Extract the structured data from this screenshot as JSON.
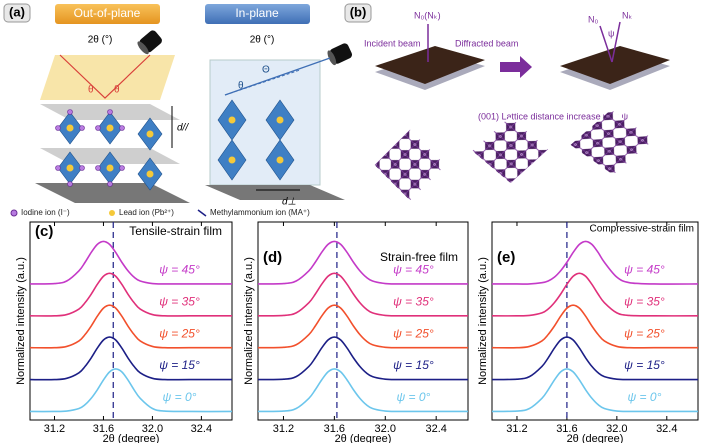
{
  "panel_a": {
    "label": "(a)",
    "out_of_plane": "Out-of-plane",
    "in_plane": "In-plane",
    "angle_left": "2θ (°)",
    "angle_right": "2θ (°)",
    "theta_left": [
      "θ",
      "θ"
    ],
    "theta_right": [
      "Θ",
      "θ"
    ],
    "d_parallel": "d//",
    "d_perp": "d⊥",
    "legend": [
      "Iodine ion (I⁻)",
      "Lead ion (Pb²⁺)",
      "Methylammonium ion (MA⁺)"
    ]
  },
  "panel_b": {
    "label": "(b)",
    "normal_left": "N₀(Nₖ)",
    "incident": "Incident beam",
    "diffracted": "Diffracted beam",
    "normal_0": "N₀",
    "psi": "ψ",
    "normal_k": "Nₖ",
    "caption": "(001) Lattice distance increase with ψ"
  },
  "chart_data": [
    {
      "type": "line",
      "panel": "(c)",
      "title": "Tensile-strain film",
      "xlabel": "2θ (degree)",
      "ylabel": "Normalized intensity (a.u.)",
      "xlim": [
        31.0,
        32.65
      ],
      "ylim": [
        -0.2,
        4.45
      ],
      "xticks": [
        31.2,
        31.6,
        {
          "value": 32,
          "label": "32.0"
        },
        32.4
      ],
      "reference_x": 31.68,
      "x": [
        31.0,
        31.2,
        31.3,
        31.4,
        31.45,
        31.5,
        31.55,
        31.6,
        31.65,
        31.7,
        31.75,
        31.8,
        31.85,
        31.9,
        32.0,
        32.1,
        32.3,
        32.65
      ],
      "series": [
        {
          "name": "ψ = 45°",
          "color": "#c43ac8",
          "values": [
            0,
            0.01,
            0.07,
            0.31,
            0.51,
            0.74,
            0.93,
            1,
            0.93,
            0.74,
            0.51,
            0.31,
            0.16,
            0.07,
            0.01,
            0,
            0,
            0
          ]
        },
        {
          "name": "ψ = 35°",
          "color": "#e0307a",
          "values": [
            0,
            0,
            0.03,
            0.16,
            0.31,
            0.51,
            0.74,
            0.93,
            1,
            0.93,
            0.74,
            0.51,
            0.31,
            0.16,
            0.03,
            0,
            0,
            0
          ]
        },
        {
          "name": "ψ = 25°",
          "color": "#f2502c",
          "values": [
            0,
            0,
            0.03,
            0.16,
            0.31,
            0.51,
            0.74,
            0.93,
            1,
            0.93,
            0.74,
            0.51,
            0.31,
            0.16,
            0.03,
            0,
            0,
            0
          ]
        },
        {
          "name": "ψ = 15°",
          "color": "#1c1f86",
          "values": [
            0,
            0,
            0.03,
            0.16,
            0.31,
            0.51,
            0.74,
            0.93,
            1,
            0.93,
            0.74,
            0.51,
            0.31,
            0.16,
            0.03,
            0,
            0,
            0
          ]
        },
        {
          "name": "ψ = 0°",
          "color": "#6cc6ec",
          "values": [
            0,
            0,
            0.01,
            0.07,
            0.16,
            0.31,
            0.51,
            0.74,
            0.93,
            1,
            0.93,
            0.74,
            0.51,
            0.31,
            0.07,
            0.01,
            0,
            0
          ]
        }
      ]
    },
    {
      "type": "line",
      "panel": "(d)",
      "title": "Strain-free film",
      "xlabel": "2θ (degree)",
      "ylabel": "Normalized intensity (a.u.)",
      "xlim": [
        31.0,
        32.65
      ],
      "ylim": [
        -0.2,
        4.45
      ],
      "xticks": [
        31.2,
        31.6,
        {
          "value": 32,
          "label": "32.0"
        },
        32.4
      ],
      "reference_x": 31.62,
      "x": [
        31.0,
        31.2,
        31.3,
        31.4,
        31.45,
        31.5,
        31.55,
        31.6,
        31.65,
        31.7,
        31.75,
        31.8,
        31.85,
        31.9,
        32.0,
        32.1,
        32.3,
        32.65
      ],
      "series": [
        {
          "name": "ψ = 45°",
          "color": "#c43ac8",
          "values": [
            0,
            0.01,
            0.07,
            0.31,
            0.51,
            0.74,
            0.93,
            1,
            0.93,
            0.74,
            0.51,
            0.31,
            0.16,
            0.07,
            0.01,
            0,
            0,
            0
          ]
        },
        {
          "name": "ψ = 35°",
          "color": "#e0307a",
          "values": [
            0,
            0.01,
            0.07,
            0.31,
            0.51,
            0.74,
            0.93,
            1,
            0.93,
            0.74,
            0.51,
            0.31,
            0.16,
            0.07,
            0.01,
            0,
            0,
            0
          ]
        },
        {
          "name": "ψ = 25°",
          "color": "#f2502c",
          "values": [
            0,
            0.01,
            0.07,
            0.31,
            0.51,
            0.74,
            0.93,
            1,
            0.93,
            0.74,
            0.51,
            0.31,
            0.16,
            0.07,
            0.01,
            0,
            0,
            0
          ]
        },
        {
          "name": "ψ = 15°",
          "color": "#1c1f86",
          "values": [
            0,
            0.01,
            0.07,
            0.31,
            0.51,
            0.74,
            0.93,
            1,
            0.93,
            0.74,
            0.51,
            0.31,
            0.16,
            0.07,
            0.01,
            0,
            0,
            0
          ]
        },
        {
          "name": "ψ = 0°",
          "color": "#6cc6ec",
          "values": [
            0,
            0.01,
            0.07,
            0.31,
            0.51,
            0.74,
            0.93,
            1,
            0.93,
            0.74,
            0.51,
            0.31,
            0.16,
            0.07,
            0.01,
            0,
            0,
            0
          ]
        }
      ]
    },
    {
      "type": "line",
      "panel": "(e)",
      "title": "Compressive-strain film",
      "xlabel": "2θ (degree)",
      "ylabel": "Normalized intensity (a.u.)",
      "xlim": [
        31.0,
        32.65
      ],
      "ylim": [
        -0.2,
        4.45
      ],
      "xticks": [
        31.2,
        31.6,
        {
          "value": 32,
          "label": "32.0"
        },
        32.4
      ],
      "reference_x": 31.6,
      "x": [
        31.0,
        31.2,
        31.3,
        31.4,
        31.45,
        31.5,
        31.55,
        31.6,
        31.65,
        31.7,
        31.75,
        31.8,
        31.85,
        31.9,
        32.0,
        32.1,
        32.3,
        32.65
      ],
      "series": [
        {
          "name": "ψ = 45°",
          "color": "#c43ac8",
          "values": [
            0,
            0,
            0,
            0.03,
            0.07,
            0.16,
            0.31,
            0.51,
            0.74,
            0.93,
            1,
            0.93,
            0.74,
            0.51,
            0.16,
            0.03,
            0,
            0
          ]
        },
        {
          "name": "ψ = 35°",
          "color": "#e0307a",
          "values": [
            0,
            0,
            0.01,
            0.07,
            0.16,
            0.31,
            0.51,
            0.74,
            0.93,
            1,
            0.93,
            0.74,
            0.51,
            0.31,
            0.07,
            0.01,
            0,
            0
          ]
        },
        {
          "name": "ψ = 25°",
          "color": "#f2502c",
          "values": [
            0,
            0,
            0.03,
            0.16,
            0.31,
            0.51,
            0.74,
            0.93,
            1,
            0.93,
            0.74,
            0.51,
            0.31,
            0.16,
            0.03,
            0,
            0,
            0
          ]
        },
        {
          "name": "ψ = 15°",
          "color": "#1c1f86",
          "values": [
            0,
            0.01,
            0.07,
            0.31,
            0.51,
            0.74,
            0.93,
            1,
            0.93,
            0.74,
            0.51,
            0.31,
            0.16,
            0.07,
            0.01,
            0,
            0,
            0
          ]
        },
        {
          "name": "ψ = 0°",
          "color": "#6cc6ec",
          "values": [
            0,
            0.01,
            0.07,
            0.31,
            0.51,
            0.74,
            0.93,
            1,
            0.93,
            0.74,
            0.51,
            0.31,
            0.16,
            0.07,
            0.01,
            0,
            0,
            0
          ]
        }
      ]
    }
  ]
}
